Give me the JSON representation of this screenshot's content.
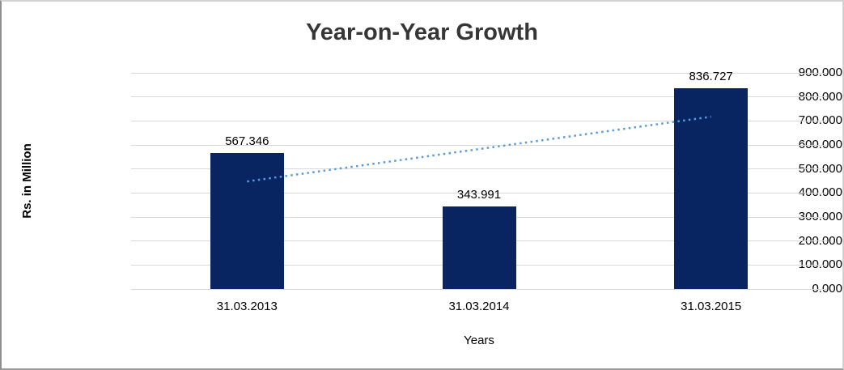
{
  "chart_data": {
    "type": "bar",
    "title": "Year-on-Year Growth",
    "categories": [
      "31.03.2013",
      "31.03.2014",
      "31.03.2015"
    ],
    "values": [
      567.346,
      343.991,
      836.727
    ],
    "value_labels": [
      "567.346",
      "343.991",
      "836.727"
    ],
    "xlabel": "Years",
    "ylabel": "Rs. in Million",
    "ylim": [
      0,
      900
    ],
    "ytick_step": 100,
    "ytick_labels": [
      "0.000",
      "100.000",
      "200.000",
      "300.000",
      "400.000",
      "500.000",
      "600.000",
      "700.000",
      "800.000",
      "900.000"
    ],
    "grid": true,
    "legend": "none",
    "trendline": {
      "type": "linear",
      "style": "dotted",
      "start_value": 448.0,
      "end_value": 717.4,
      "color": "#5b9bd5"
    },
    "colors": {
      "bar": "#082562",
      "gridline": "#d9d9d9",
      "title_text": "#363636",
      "label_text": "#000000"
    }
  }
}
